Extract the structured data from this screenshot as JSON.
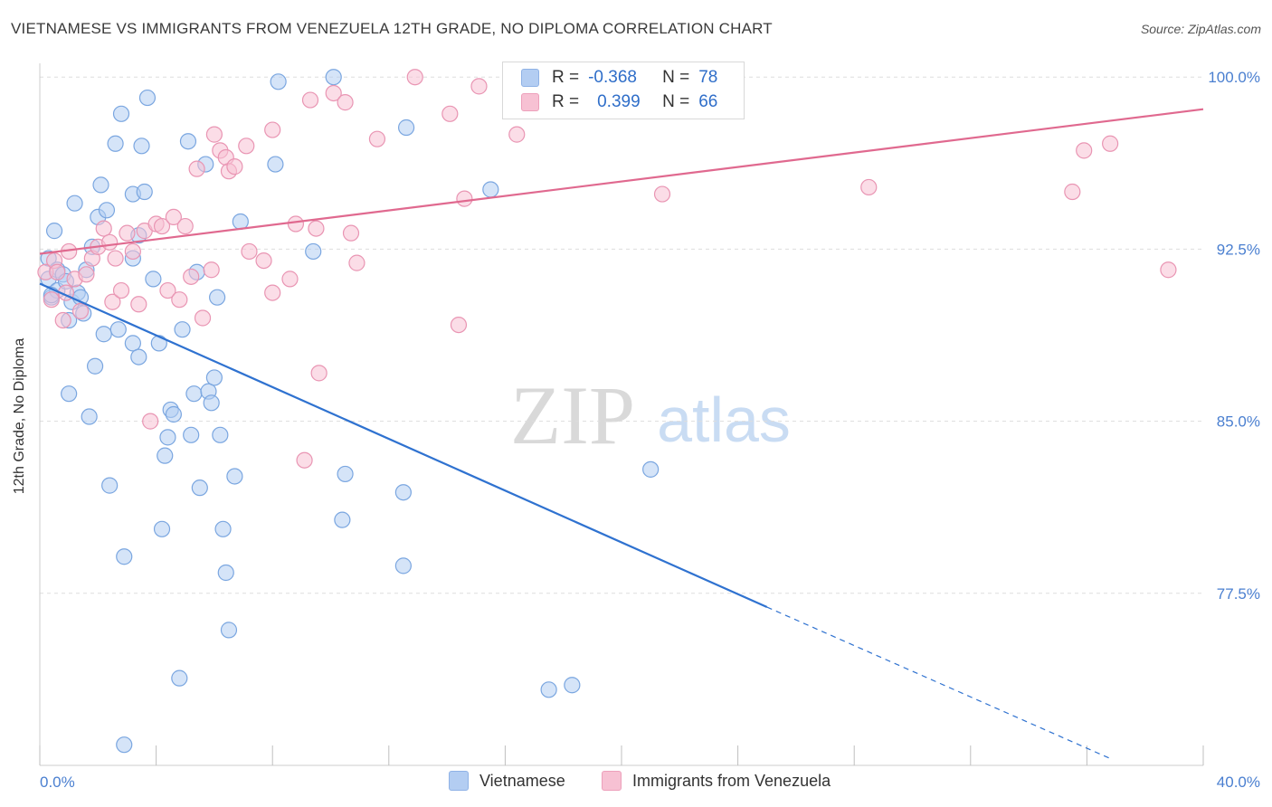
{
  "header": {
    "title": "VIETNAMESE VS IMMIGRANTS FROM VENEZUELA 12TH GRADE, NO DIPLOMA CORRELATION CHART",
    "source": "Source: ZipAtlas.com"
  },
  "watermark": {
    "zip": "ZIP",
    "atlas": "atlas"
  },
  "legend_box": {
    "rows": [
      {
        "r_label": "R =",
        "r_value": "-0.368",
        "n_label": "N =",
        "n_value": "78"
      },
      {
        "r_label": "R =",
        "r_value": "0.399",
        "n_label": "N =",
        "n_value": "66"
      }
    ]
  },
  "colors": {
    "blue_fill": "#b3cdf2",
    "blue_stroke": "#7aa6e0",
    "blue_line": "#2f72d0",
    "pink_fill": "#f7c1d3",
    "pink_stroke": "#e995b3",
    "pink_line": "#e0698f",
    "axis_label": "#4a7fd0",
    "grid": "#dddddd"
  },
  "chart_data": {
    "type": "scatter",
    "title": "VIETNAMESE VS IMMIGRANTS FROM VENEZUELA 12TH GRADE, NO DIPLOMA CORRELATION CHART",
    "xlabel": "",
    "ylabel": "12th Grade, No Diploma",
    "xlim": [
      0,
      40
    ],
    "ylim": [
      70,
      100.6
    ],
    "x_tick_labels": [
      "0.0%",
      "40.0%"
    ],
    "y_ticks": [
      77.5,
      85.0,
      92.5,
      100.0
    ],
    "y_tick_labels": [
      "77.5%",
      "85.0%",
      "92.5%",
      "100.0%"
    ],
    "grid": true,
    "legend_position": "bottom",
    "series": [
      {
        "name": "Vietnamese",
        "color": "#b3cdf2",
        "r": -0.368,
        "n": 78,
        "trend": {
          "x0": 0.0,
          "y0": 91.0,
          "x1": 25.0,
          "y1": 76.9,
          "dashed_to_x": 36.8,
          "dashed_to_y": 70.3
        },
        "points": [
          [
            0.3,
            92.1
          ],
          [
            0.3,
            91.2
          ],
          [
            0.4,
            90.4
          ],
          [
            0.5,
            93.3
          ],
          [
            0.6,
            91.6
          ],
          [
            0.6,
            90.7
          ],
          [
            0.8,
            91.4
          ],
          [
            0.9,
            91.1
          ],
          [
            1.0,
            86.2
          ],
          [
            1.0,
            89.4
          ],
          [
            1.1,
            90.2
          ],
          [
            1.2,
            94.5
          ],
          [
            1.3,
            90.6
          ],
          [
            1.4,
            90.4
          ],
          [
            1.5,
            89.7
          ],
          [
            1.6,
            91.6
          ],
          [
            1.7,
            85.2
          ],
          [
            1.8,
            92.6
          ],
          [
            1.9,
            87.4
          ],
          [
            2.0,
            93.9
          ],
          [
            2.1,
            95.3
          ],
          [
            2.2,
            88.8
          ],
          [
            2.3,
            94.2
          ],
          [
            2.4,
            82.2
          ],
          [
            2.6,
            97.1
          ],
          [
            2.7,
            89.0
          ],
          [
            2.8,
            98.4
          ],
          [
            2.9,
            79.1
          ],
          [
            2.9,
            70.9
          ],
          [
            3.2,
            88.4
          ],
          [
            3.2,
            92.1
          ],
          [
            3.2,
            94.9
          ],
          [
            3.4,
            87.8
          ],
          [
            3.4,
            93.1
          ],
          [
            3.5,
            97.0
          ],
          [
            3.6,
            95.0
          ],
          [
            3.7,
            99.1
          ],
          [
            3.9,
            91.2
          ],
          [
            4.1,
            88.4
          ],
          [
            4.2,
            80.3
          ],
          [
            4.3,
            83.5
          ],
          [
            4.4,
            84.3
          ],
          [
            4.5,
            85.5
          ],
          [
            4.6,
            85.3
          ],
          [
            4.8,
            73.8
          ],
          [
            4.9,
            89.0
          ],
          [
            5.1,
            97.2
          ],
          [
            5.2,
            84.4
          ],
          [
            5.3,
            86.2
          ],
          [
            5.4,
            91.5
          ],
          [
            5.5,
            82.1
          ],
          [
            5.7,
            96.2
          ],
          [
            5.8,
            86.3
          ],
          [
            5.9,
            85.8
          ],
          [
            6.0,
            86.9
          ],
          [
            6.1,
            90.4
          ],
          [
            6.2,
            84.4
          ],
          [
            6.3,
            80.3
          ],
          [
            6.4,
            78.4
          ],
          [
            6.5,
            75.9
          ],
          [
            6.7,
            82.6
          ],
          [
            6.9,
            93.7
          ],
          [
            8.1,
            96.2
          ],
          [
            8.2,
            99.8
          ],
          [
            9.4,
            92.4
          ],
          [
            10.1,
            100.0
          ],
          [
            10.4,
            80.7
          ],
          [
            10.5,
            82.7
          ],
          [
            12.5,
            78.7
          ],
          [
            12.5,
            81.9
          ],
          [
            12.6,
            97.8
          ],
          [
            15.5,
            95.1
          ],
          [
            17.5,
            99.7
          ],
          [
            17.5,
            73.3
          ],
          [
            18.3,
            73.5
          ],
          [
            19.3,
            99.6
          ],
          [
            21.0,
            82.9
          ],
          [
            0.4,
            90.5
          ]
        ]
      },
      {
        "name": "Immigrants from Venezuela",
        "color": "#f7c1d3",
        "r": 0.399,
        "n": 66,
        "trend": {
          "x0": 0.0,
          "y0": 92.3,
          "x1": 40.0,
          "y1": 98.6
        },
        "points": [
          [
            0.2,
            91.5
          ],
          [
            0.4,
            90.3
          ],
          [
            0.5,
            92.0
          ],
          [
            0.6,
            91.5
          ],
          [
            0.8,
            89.4
          ],
          [
            0.9,
            90.6
          ],
          [
            1.0,
            92.4
          ],
          [
            1.2,
            91.2
          ],
          [
            1.4,
            89.8
          ],
          [
            1.6,
            91.4
          ],
          [
            1.8,
            92.1
          ],
          [
            2.0,
            92.6
          ],
          [
            2.2,
            93.4
          ],
          [
            2.4,
            92.8
          ],
          [
            2.5,
            90.2
          ],
          [
            2.6,
            92.1
          ],
          [
            2.8,
            90.7
          ],
          [
            3.0,
            93.2
          ],
          [
            3.2,
            92.4
          ],
          [
            3.4,
            90.1
          ],
          [
            3.6,
            93.3
          ],
          [
            3.8,
            85.0
          ],
          [
            4.0,
            93.6
          ],
          [
            4.2,
            93.5
          ],
          [
            4.4,
            90.7
          ],
          [
            4.6,
            93.9
          ],
          [
            4.8,
            90.3
          ],
          [
            5.0,
            93.5
          ],
          [
            5.2,
            91.3
          ],
          [
            5.4,
            96.0
          ],
          [
            5.6,
            89.5
          ],
          [
            5.9,
            91.6
          ],
          [
            6.0,
            97.5
          ],
          [
            6.2,
            96.8
          ],
          [
            6.4,
            96.5
          ],
          [
            6.5,
            95.9
          ],
          [
            6.7,
            96.1
          ],
          [
            7.1,
            97.0
          ],
          [
            7.2,
            92.4
          ],
          [
            7.7,
            92.0
          ],
          [
            8.0,
            97.7
          ],
          [
            8.0,
            90.6
          ],
          [
            8.6,
            91.2
          ],
          [
            8.8,
            93.6
          ],
          [
            9.1,
            83.3
          ],
          [
            9.3,
            99.0
          ],
          [
            9.5,
            93.4
          ],
          [
            9.6,
            87.1
          ],
          [
            10.1,
            99.3
          ],
          [
            10.5,
            98.9
          ],
          [
            10.7,
            93.2
          ],
          [
            10.9,
            91.9
          ],
          [
            11.6,
            97.3
          ],
          [
            12.9,
            100.0
          ],
          [
            14.1,
            98.4
          ],
          [
            14.4,
            89.2
          ],
          [
            14.6,
            94.7
          ],
          [
            15.1,
            99.6
          ],
          [
            16.4,
            97.5
          ],
          [
            19.9,
            100.0
          ],
          [
            21.4,
            94.9
          ],
          [
            28.5,
            95.2
          ],
          [
            35.5,
            95.0
          ],
          [
            35.9,
            96.8
          ],
          [
            36.8,
            97.1
          ],
          [
            38.8,
            91.6
          ]
        ]
      }
    ]
  },
  "bottom_legend": {
    "items": [
      "Vietnamese",
      "Immigrants from Venezuela"
    ]
  }
}
